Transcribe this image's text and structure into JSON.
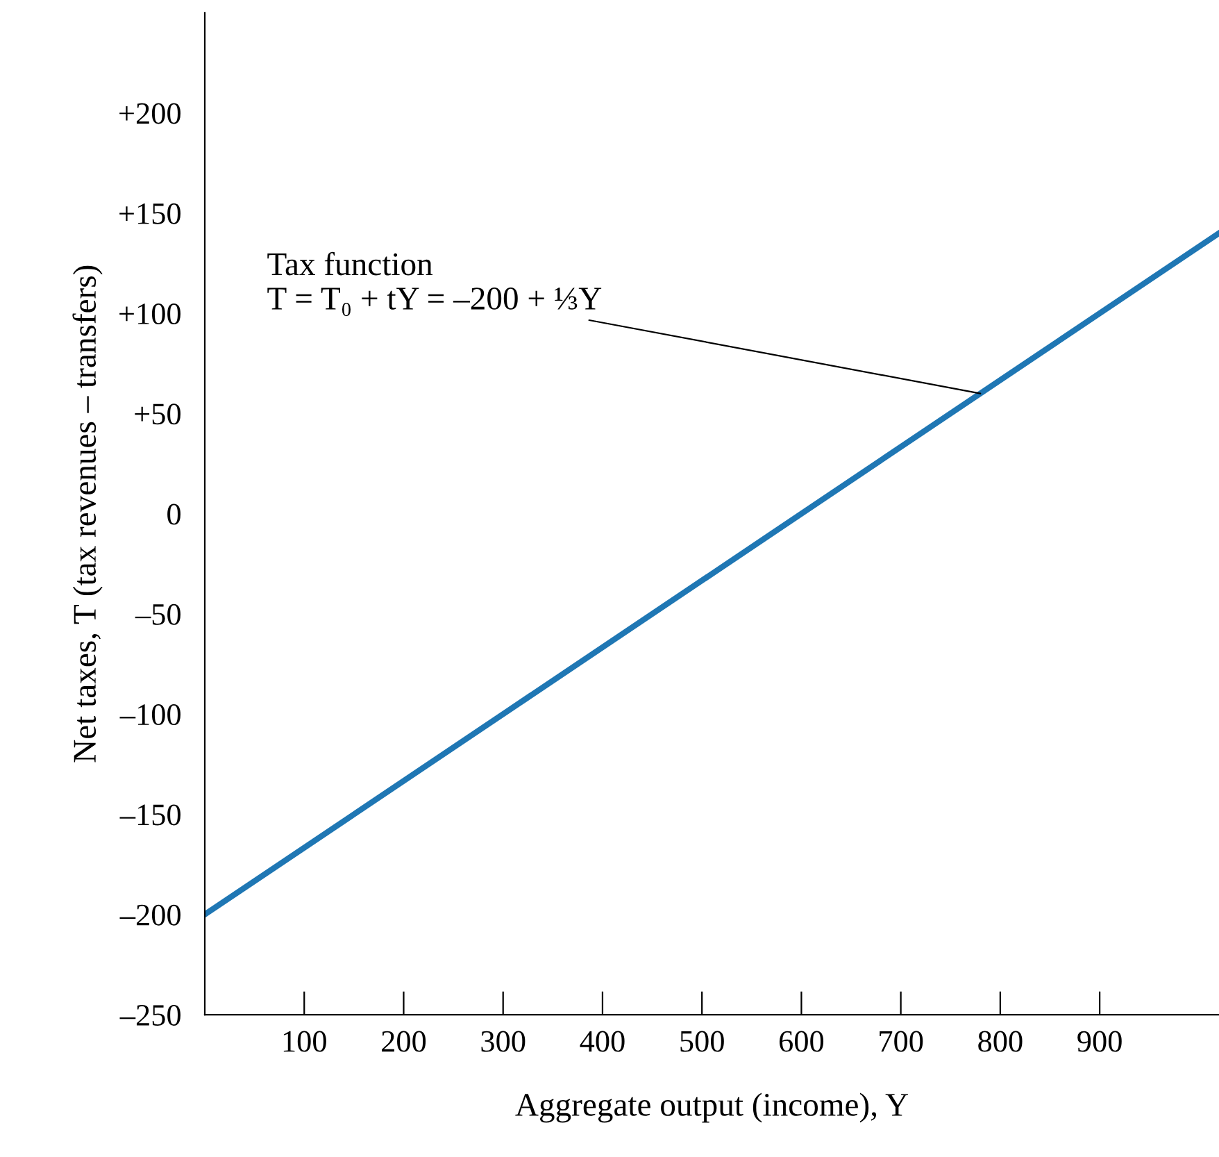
{
  "chart_data": {
    "type": "line",
    "xlabel": "Aggregate output (income), Y",
    "ylabel": "Net taxes, T (tax revenues – transfers)",
    "x": [
      0,
      1020
    ],
    "series": [
      {
        "color": "#1f77b4",
        "values": [
          -200,
          140
        ]
      }
    ],
    "xlim": [
      0,
      1020
    ],
    "ylim": [
      -250,
      250
    ],
    "xticks": [
      100,
      200,
      300,
      400,
      500,
      600,
      700,
      800,
      900
    ],
    "yticks": [
      {
        "value": -250,
        "label": "–250"
      },
      {
        "value": -200,
        "label": "–200"
      },
      {
        "value": -150,
        "label": "–150"
      },
      {
        "value": -100,
        "label": "–100"
      },
      {
        "value": -50,
        "label": "–50"
      },
      {
        "value": 0,
        "label": "0"
      },
      {
        "value": 50,
        "label": "+50"
      },
      {
        "value": 100,
        "label": "+100"
      },
      {
        "value": 150,
        "label": "+150"
      },
      {
        "value": 200,
        "label": "+200"
      }
    ],
    "annotations": [
      {
        "text": "Tax function\nT = T₀ + tY = –200 + ⅓Y",
        "x": 780,
        "y": 60
      }
    ],
    "grid": false,
    "legend": false,
    "marker": "none",
    "line_style": "solid"
  }
}
